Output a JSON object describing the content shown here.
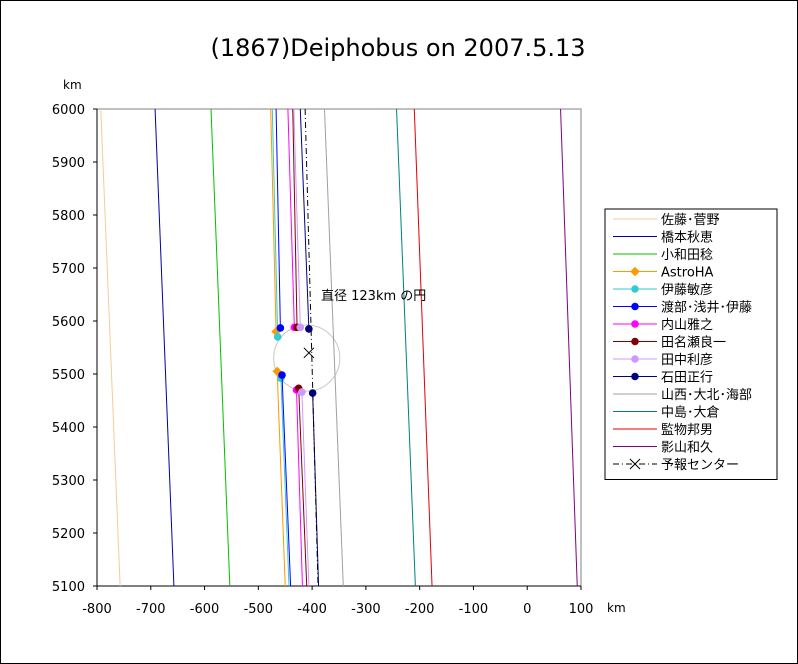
{
  "chart_data": {
    "type": "line",
    "title": "(1867)Deiphobus on 2007.5.13",
    "x_unit": "km",
    "y_unit": "km",
    "xlim": [
      -800,
      100
    ],
    "ylim": [
      5100,
      6000
    ],
    "x_ticks": [
      "-800",
      "-700",
      "-600",
      "-500",
      "-400",
      "-300",
      "-200",
      "-100",
      "0",
      "100"
    ],
    "y_ticks": [
      "5100",
      "5200",
      "5300",
      "5400",
      "5500",
      "5600",
      "5700",
      "5800",
      "5900",
      "6000"
    ],
    "grid": false,
    "legend_position": "right",
    "annotation": "直径 123km の円",
    "circle": {
      "center": [
        -410,
        5530
      ],
      "diameter": 123
    },
    "series": [
      {
        "name": "佐藤･菅野",
        "color": "#F5CC98",
        "marker": "none",
        "lines": [
          [
            [
              -793,
              6000
            ],
            [
              -757,
              5100
            ]
          ]
        ]
      },
      {
        "name": "橋本秋恵",
        "color": "#0000AA",
        "marker": "none",
        "lines": [
          [
            [
              -692,
              6000
            ],
            [
              -657,
              5100
            ]
          ]
        ]
      },
      {
        "name": "小和田稔",
        "color": "#00C000",
        "marker": "none",
        "lines": [
          [
            [
              -588,
              6000
            ],
            [
              -553,
              5100
            ]
          ]
        ]
      },
      {
        "name": "AstroHA",
        "color": "#FF9900",
        "marker": "diamond",
        "lines": [
          [
            [
              -477,
              6000
            ],
            [
              -467,
              5580
            ]
          ],
          [
            [
              -465,
              5505
            ],
            [
              -450,
              5100
            ]
          ]
        ],
        "points": [
          [
            -467,
            5580
          ],
          [
            -465,
            5505
          ]
        ]
      },
      {
        "name": "伊藤敏彦",
        "color": "#33CCCC",
        "marker": "circle",
        "lines": [
          [
            [
              -474,
              6000
            ],
            [
              -464,
              5570
            ]
          ],
          [
            [
              -458,
              5492
            ],
            [
              -443,
              5100
            ]
          ]
        ],
        "points": [
          [
            -464,
            5570
          ],
          [
            -458,
            5492
          ]
        ]
      },
      {
        "name": "渡部･浅井･伊藤",
        "color": "#0000FF",
        "marker": "circle",
        "lines": [
          [
            [
              -467,
              6000
            ],
            [
              -459,
              5587
            ]
          ],
          [
            [
              -456,
              5498
            ],
            [
              -440,
              5100
            ]
          ]
        ],
        "points": [
          [
            -459,
            5587
          ],
          [
            -456,
            5498
          ]
        ]
      },
      {
        "name": "内山雅之",
        "color": "#FF00FF",
        "marker": "circle",
        "lines": [
          [
            [
              -445,
              6000
            ],
            [
              -433,
              5588
            ]
          ],
          [
            [
              -429,
              5470
            ],
            [
              -418,
              5100
            ]
          ]
        ],
        "points": [
          [
            -433,
            5588
          ],
          [
            -429,
            5470
          ]
        ]
      },
      {
        "name": "田名瀬良一",
        "color": "#800000",
        "marker": "circle",
        "lines": [
          [
            [
              -436,
              6000
            ],
            [
              -428,
              5588
            ]
          ],
          [
            [
              -425,
              5473
            ],
            [
              -410,
              5100
            ]
          ]
        ],
        "points": [
          [
            -428,
            5588
          ],
          [
            -425,
            5473
          ]
        ]
      },
      {
        "name": "田中利彦",
        "color": "#CC99FF",
        "marker": "circle",
        "lines": [
          [
            [
              -434,
              6000
            ],
            [
              -422,
              5588
            ]
          ],
          [
            [
              -419,
              5466
            ],
            [
              -406,
              5100
            ]
          ]
        ],
        "points": [
          [
            -422,
            5588
          ],
          [
            -419,
            5466
          ]
        ]
      },
      {
        "name": "石田正行",
        "color": "#000080",
        "marker": "circle",
        "lines": [
          [
            [
              -422,
              6000
            ],
            [
              -406,
              5585
            ]
          ],
          [
            [
              -399,
              5464
            ],
            [
              -388,
              5100
            ]
          ]
        ],
        "points": [
          [
            -406,
            5585
          ],
          [
            -399,
            5464
          ]
        ]
      },
      {
        "name": "山西･大北･海部",
        "color": "#A0A0A0",
        "marker": "none",
        "lines": [
          [
            [
              -377,
              6000
            ],
            [
              -342,
              5100
            ]
          ]
        ]
      },
      {
        "name": "中島･大倉",
        "color": "#008080",
        "marker": "none",
        "lines": [
          [
            [
              -243,
              6000
            ],
            [
              -208,
              5100
            ]
          ]
        ]
      },
      {
        "name": "監物邦男",
        "color": "#E00000",
        "marker": "none",
        "lines": [
          [
            [
              -210,
              6000
            ],
            [
              -177,
              5100
            ]
          ]
        ]
      },
      {
        "name": "影山和久",
        "color": "#800080",
        "marker": "none",
        "lines": [
          [
            [
              62,
              6000
            ],
            [
              93,
              5100
            ]
          ]
        ]
      },
      {
        "name": "予報センター",
        "color": "#000000",
        "marker": "cross",
        "dash": true,
        "lines": [
          [
            [
              -413,
              6000
            ],
            [
              -389,
              5100
            ]
          ]
        ],
        "points": [
          [
            -406,
            5540
          ]
        ]
      }
    ]
  }
}
